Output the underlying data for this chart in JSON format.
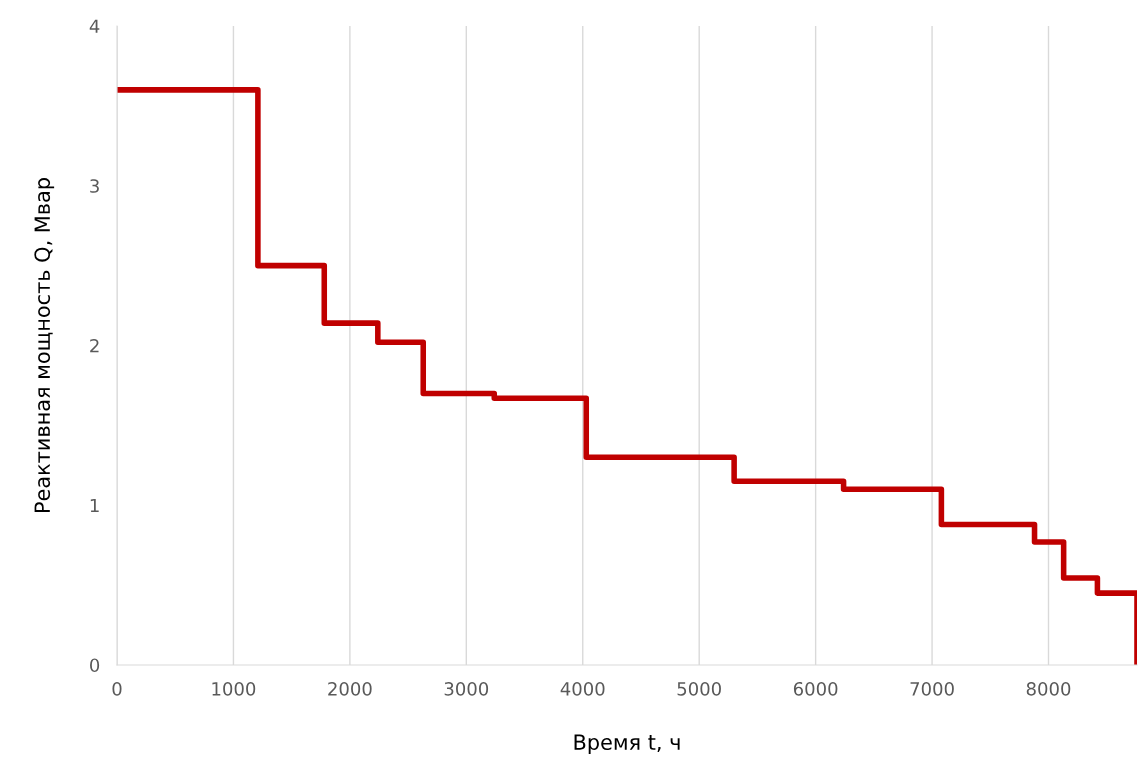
{
  "chart_data": {
    "type": "step",
    "xlabel": "Время t, ч",
    "ylabel": "Реактивная мощность Q, Мвар",
    "x": [
      0,
      1210,
      1780,
      2240,
      2630,
      3240,
      4030,
      5300,
      6240,
      7080,
      7880,
      8130,
      8420,
      8760
    ],
    "series": [
      {
        "color": "#c00000",
        "values": [
          3.6,
          2.5,
          2.14,
          2.02,
          1.7,
          1.67,
          1.3,
          1.15,
          1.1,
          0.88,
          0.77,
          0.545,
          0.45,
          0
        ]
      }
    ],
    "xlim": [
      0,
      8760
    ],
    "ylim": [
      0,
      4
    ],
    "xticks": [
      0,
      1000,
      2000,
      3000,
      4000,
      5000,
      6000,
      7000,
      8000
    ],
    "yticks": [
      0,
      1,
      2,
      3,
      4
    ],
    "grid": "x",
    "legend": false,
    "marker": "none",
    "line_style": "solid"
  }
}
